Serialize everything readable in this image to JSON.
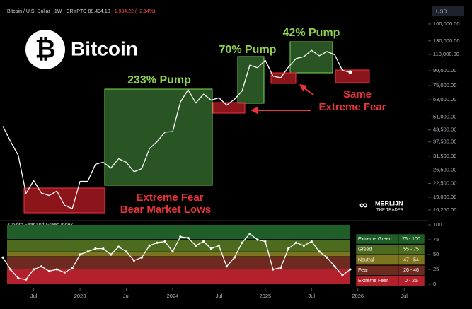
{
  "header": {
    "title": "Bitcoin / U.S. Dollar · 1W · CRYPTO",
    "last": "88,494.10",
    "change": "−1,934.22 (−2.14%)",
    "currency": "USD"
  },
  "logo": {
    "name": "Bitcoin"
  },
  "watermark": {
    "line1": "MERLIJN",
    "line2": "THE TRADER"
  },
  "annotations": [
    "233% Pump",
    "70% Pump",
    "42% Pump",
    "Extreme Fear",
    "Bear Market Lows",
    "Same",
    "Extreme Fear"
  ],
  "chart_data": [
    {
      "type": "line",
      "log_scale": true,
      "color": "#ffffff",
      "x": [
        "2022-03",
        "2022-04",
        "2022-05",
        "2022-06",
        "2022-07",
        "2022-08",
        "2022-09",
        "2022-10",
        "2022-11",
        "2022-12",
        "2023-01",
        "2023-02",
        "2023-03",
        "2023-04",
        "2023-05",
        "2023-06",
        "2023-07",
        "2023-08",
        "2023-09",
        "2023-10",
        "2023-11",
        "2023-12",
        "2024-01",
        "2024-02",
        "2024-03",
        "2024-04",
        "2024-05",
        "2024-06",
        "2024-07",
        "2024-08",
        "2024-09",
        "2024-10",
        "2024-11",
        "2024-12",
        "2025-01",
        "2025-02",
        "2025-03",
        "2025-04",
        "2025-05",
        "2025-06",
        "2025-07",
        "2025-08",
        "2025-09",
        "2025-10",
        "2025-11",
        "2025-12"
      ],
      "values": [
        45500,
        37700,
        31800,
        19900,
        23300,
        20000,
        19400,
        20500,
        17200,
        16500,
        23100,
        23100,
        28500,
        29200,
        27200,
        30500,
        29200,
        26000,
        27000,
        34500,
        37700,
        42300,
        42600,
        61200,
        71300,
        60600,
        67500,
        62700,
        64600,
        59000,
        63300,
        70200,
        96400,
        93400,
        102400,
        84300,
        82500,
        94200,
        104600,
        107100,
        115700,
        108200,
        114000,
        109500,
        90400,
        88494.1
      ],
      "xlim": [
        "2022-03",
        "2026-09"
      ],
      "xticks": [
        {
          "value": "2022-07",
          "label": "Jul"
        },
        {
          "value": "2023-01",
          "label": "2023"
        },
        {
          "value": "2023-07",
          "label": "Jul"
        },
        {
          "value": "2024-01",
          "label": "2024"
        },
        {
          "value": "2024-07",
          "label": "Jul"
        },
        {
          "value": "2025-01",
          "label": "2025"
        },
        {
          "value": "2025-07",
          "label": "Jul"
        },
        {
          "value": "2026-01",
          "label": "2026"
        },
        {
          "value": "2026-07",
          "label": "Jul"
        }
      ],
      "ylim": [
        14500,
        197000
      ],
      "yticks": [
        {
          "value": 160000,
          "label": "160,000.00"
        },
        {
          "value": 130000,
          "label": "130,000.00"
        },
        {
          "value": 110000,
          "label": "110,000.00"
        },
        {
          "value": 90000,
          "label": "90,000.00"
        },
        {
          "value": 75000,
          "label": "75,000.00"
        },
        {
          "value": 63000,
          "label": "63,000.00"
        },
        {
          "value": 51000,
          "label": "51,000.00"
        },
        {
          "value": 43500,
          "label": "43,500.00"
        },
        {
          "value": 37500,
          "label": "37,500.00"
        },
        {
          "value": 31500,
          "label": "31,500.00"
        },
        {
          "value": 26500,
          "label": "26,500.00"
        },
        {
          "value": 22500,
          "label": "22,500.00"
        },
        {
          "value": 19000,
          "label": "19,000.00"
        },
        {
          "value": 16250,
          "label": "16,250.00"
        }
      ]
    },
    {
      "type": "line",
      "title": "Crypto Fear and Greed Index",
      "color": "#ffffff",
      "x": [
        "2022-03",
        "2022-04",
        "2022-05",
        "2022-06",
        "2022-07",
        "2022-08",
        "2022-09",
        "2022-10",
        "2022-11",
        "2022-12",
        "2023-01",
        "2023-02",
        "2023-03",
        "2023-04",
        "2023-05",
        "2023-06",
        "2023-07",
        "2023-08",
        "2023-09",
        "2023-10",
        "2023-11",
        "2023-12",
        "2024-01",
        "2024-02",
        "2024-03",
        "2024-04",
        "2024-05",
        "2024-06",
        "2024-07",
        "2024-08",
        "2024-09",
        "2024-10",
        "2024-11",
        "2024-12",
        "2025-01",
        "2025-02",
        "2025-03",
        "2025-04",
        "2025-05",
        "2025-06",
        "2025-07",
        "2025-08",
        "2025-09",
        "2025-10",
        "2025-11",
        "2025-12"
      ],
      "values": [
        45,
        25,
        10,
        8,
        25,
        30,
        22,
        25,
        20,
        27,
        50,
        55,
        60,
        60,
        50,
        63,
        55,
        40,
        45,
        65,
        70,
        72,
        55,
        80,
        78,
        65,
        72,
        60,
        65,
        30,
        45,
        70,
        85,
        75,
        72,
        25,
        28,
        60,
        70,
        65,
        72,
        55,
        45,
        30,
        15,
        25
      ],
      "ylim": [
        0,
        100
      ],
      "yticks": [
        0,
        25,
        50,
        75,
        100
      ],
      "zones": [
        {
          "name": "Extreme Greed",
          "range": "76 - 100",
          "min": 76,
          "max": 100,
          "color": "#1f5e27"
        },
        {
          "name": "Greed",
          "range": "55 - 75",
          "min": 55,
          "max": 75,
          "color": "#4d6b1f"
        },
        {
          "name": "Neutral",
          "range": "47 - 54",
          "min": 47,
          "max": 54,
          "color": "#7d7420"
        },
        {
          "name": "Fear",
          "range": "26 - 46",
          "min": 26,
          "max": 46,
          "color": "#6e2a20"
        },
        {
          "name": "Extreme Fear",
          "range": "0 - 25",
          "min": 0,
          "max": 25,
          "color": "#b3222c"
        }
      ]
    }
  ]
}
